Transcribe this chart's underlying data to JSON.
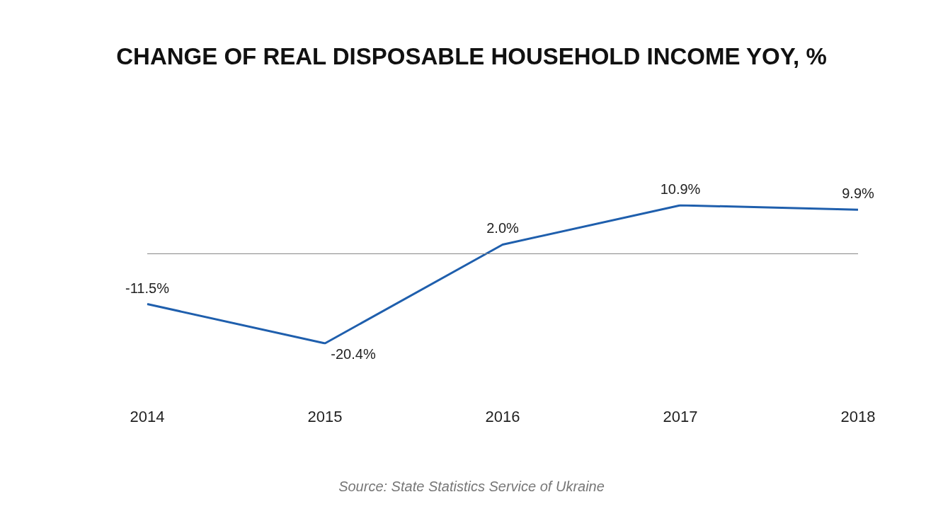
{
  "chart_data": {
    "type": "line",
    "title": "CHANGE OF REAL DISPOSABLE HOUSEHOLD INCOME YOY, %",
    "categories": [
      "2014",
      "2015",
      "2016",
      "2017",
      "2018"
    ],
    "series": [
      {
        "color": "#1f5fad",
        "values": [
          -11.5,
          -20.4,
          2.0,
          10.9,
          9.9
        ],
        "value_labels": [
          "-11.5%",
          "-20.4%",
          "2.0%",
          "10.9%",
          "9.9%"
        ]
      }
    ],
    "ref_lines": [
      {
        "axis": "y",
        "value": 0,
        "color": "#888888"
      }
    ],
    "marker": "none",
    "grid": false,
    "annotations": [
      "Source: State Statistics Service of Ukraine"
    ]
  }
}
